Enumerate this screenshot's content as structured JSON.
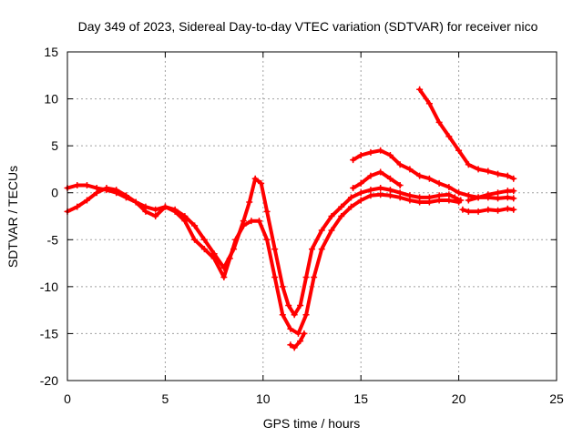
{
  "chart_data": {
    "type": "scatter",
    "title": "Day 349 of 2023, Sidereal Day-to-day VTEC variation (SDTVAR) for receiver nico",
    "xlabel": "GPS time / hours",
    "ylabel": "SDTVAR / TECUs",
    "xlim": [
      0,
      25
    ],
    "ylim": [
      -20,
      15
    ],
    "xticks": [
      "0",
      "5",
      "10",
      "15",
      "20",
      "25"
    ],
    "yticks": [
      "-20",
      "-15",
      "-10",
      "-5",
      "0",
      "5",
      "10",
      "15"
    ],
    "grid": true,
    "color": "#ff0000",
    "series": [
      {
        "name": "main-track-upper",
        "x": [
          0,
          0.5,
          1,
          1.5,
          2,
          2.5,
          3,
          3.5,
          4,
          4.5,
          5,
          5.5,
          6,
          6.5,
          7,
          7.5,
          8,
          8.5,
          9,
          9.3,
          9.6,
          9.9,
          10.2,
          10.6,
          11,
          11.3,
          11.6,
          11.9,
          12.2,
          12.5,
          13,
          13.5,
          14,
          14.5,
          15,
          15.5,
          16,
          16.5,
          17,
          17.5,
          18,
          18.5,
          19,
          19.5,
          19.8,
          20.1
        ],
        "y": [
          0.5,
          0.8,
          0.8,
          0.5,
          0.3,
          0,
          -0.5,
          -1,
          -1.5,
          -1.8,
          -1.5,
          -1.8,
          -2.5,
          -3.5,
          -5,
          -6.5,
          -8,
          -6,
          -3,
          -1,
          1.5,
          1,
          -2,
          -6,
          -10,
          -12,
          -13,
          -12,
          -9,
          -6,
          -4,
          -2.5,
          -1.5,
          -0.5,
          0,
          0.3,
          0.5,
          0.3,
          0,
          -0.3,
          -0.5,
          -0.5,
          -0.3,
          -0.2,
          -0.5,
          -0.8
        ]
      },
      {
        "name": "main-track-lower",
        "x": [
          0,
          0.5,
          1,
          1.5,
          2,
          2.5,
          3,
          3.5,
          4,
          4.5,
          5,
          5.5,
          6,
          6.5,
          7,
          7.5,
          8,
          8.3,
          8.6,
          9,
          9.4,
          9.8,
          10.2,
          10.6,
          11,
          11.4,
          11.8,
          12.2,
          12.6,
          13,
          13.5,
          14,
          14.5,
          15,
          15.5,
          16,
          16.5,
          17,
          17.5,
          18,
          18.5,
          19,
          19.5,
          20
        ],
        "y": [
          -2,
          -1.5,
          -0.8,
          0,
          0.5,
          0.3,
          -0.3,
          -1,
          -2,
          -2.5,
          -1.5,
          -2,
          -3,
          -5,
          -6,
          -7,
          -9,
          -7,
          -5,
          -3.5,
          -3,
          -3,
          -5,
          -9,
          -13,
          -14.5,
          -15,
          -13,
          -9,
          -6,
          -4,
          -2.5,
          -1.5,
          -0.8,
          -0.3,
          -0.2,
          -0.3,
          -0.5,
          -0.8,
          -1,
          -1,
          -0.8,
          -0.8,
          -1
        ]
      },
      {
        "name": "track-top-right",
        "x": [
          18,
          18.5,
          19,
          19.5,
          20,
          20.5,
          21,
          21.5,
          22,
          22.5,
          22.8
        ],
        "y": [
          11,
          9.5,
          7.5,
          6,
          4.5,
          3,
          2.5,
          2.3,
          2,
          1.8,
          1.5
        ]
      },
      {
        "name": "track-mid-right",
        "x": [
          14.6,
          15,
          15.5,
          16,
          16.5,
          17,
          17.5,
          18,
          18.5,
          19,
          19.5,
          20,
          20.5,
          21,
          21.5,
          22,
          22.5,
          22.8
        ],
        "y": [
          3.5,
          4,
          4.3,
          4.5,
          4,
          3,
          2.5,
          1.8,
          1.5,
          1,
          0.6,
          0,
          -0.3,
          -0.5,
          -0.5,
          -0.6,
          -0.5,
          -0.6
        ]
      },
      {
        "name": "track-upper-right",
        "x": [
          14.6,
          15,
          15.5,
          16,
          16.5,
          17
        ],
        "y": [
          0.5,
          1,
          1.8,
          2.2,
          1.5,
          0.8
        ]
      },
      {
        "name": "track-lower-right",
        "x": [
          20.2,
          20.5,
          21,
          21.5,
          22,
          22.5,
          22.8
        ],
        "y": [
          -1.8,
          -2,
          -2,
          -1.8,
          -1.9,
          -1.7,
          -1.8
        ]
      },
      {
        "name": "track-right-tail",
        "x": [
          20.5,
          21,
          21.5,
          22,
          22.5,
          22.8
        ],
        "y": [
          -0.8,
          -0.5,
          -0.2,
          0,
          0.2,
          0.2
        ]
      },
      {
        "name": "track-small-dip",
        "x": [
          11.4,
          11.6,
          11.9,
          12.1
        ],
        "y": [
          -16.2,
          -16.5,
          -15.8,
          -15
        ]
      }
    ]
  }
}
